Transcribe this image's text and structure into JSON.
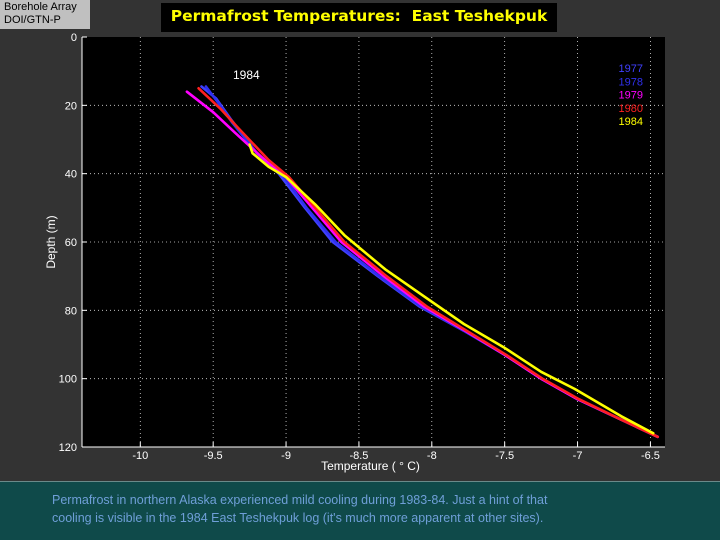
{
  "badge": {
    "line1": "Borehole Array",
    "line2": "DOI/GTN-P"
  },
  "colors": {
    "background": "#333333",
    "plot_bg": "#000000",
    "title": "#ffff00",
    "caption_bg": "#0f4a4a",
    "caption_text": "#6f9fd8"
  },
  "caption": {
    "line1": "Permafrost in northern Alaska experienced mild cooling during 1983-84.  Just a hint of that",
    "line2": "cooling is visible in the 1984 East Teshekpuk log (it's much more apparent at other sites)."
  },
  "chart_data": {
    "type": "line",
    "title": "Permafrost Temperatures:  East Teshekpuk",
    "xlabel": "Temperature (  ° C)",
    "ylabel": "Depth (m)",
    "xlim": [
      -10.4,
      -6.4
    ],
    "ylim": [
      0,
      120
    ],
    "y_inverted": true,
    "grid": true,
    "xticks": [
      -10,
      -9.5,
      -9,
      -8.5,
      -8,
      -7.5,
      -7,
      -6.5
    ],
    "xtick_labels": [
      "-10",
      "-9.5",
      "-9",
      "-8.5",
      "-8",
      "-7.5",
      "-7",
      "-6.5"
    ],
    "yticks": [
      0,
      20,
      40,
      60,
      80,
      100,
      120
    ],
    "ytick_labels": [
      "0",
      "20",
      "40",
      "60",
      "80",
      "100",
      "120"
    ],
    "legend_position": "top-right",
    "annotation": "1984",
    "series": [
      {
        "name": "1977",
        "color": "#4040ff",
        "points": [
          [
            -9.58,
            14.5
          ],
          [
            -9.48,
            18
          ],
          [
            -9.38,
            24
          ],
          [
            -9.2,
            34
          ],
          [
            -9.05,
            40
          ],
          [
            -8.87,
            50
          ],
          [
            -8.68,
            60
          ],
          [
            -8.37,
            70
          ],
          [
            -8.08,
            79
          ],
          [
            -7.78,
            86
          ],
          [
            -7.5,
            93
          ],
          [
            -7.25,
            100
          ],
          [
            -7.0,
            106
          ],
          [
            -6.7,
            112
          ],
          [
            -6.45,
            117
          ]
        ]
      },
      {
        "name": "1978",
        "color": "#3030ee",
        "points": [
          [
            -9.55,
            14.5
          ],
          [
            -9.47,
            19
          ],
          [
            -9.37,
            25
          ],
          [
            -9.2,
            34
          ],
          [
            -9.03,
            40
          ],
          [
            -8.86,
            50
          ],
          [
            -8.66,
            60
          ],
          [
            -8.36,
            70
          ],
          [
            -8.07,
            79
          ],
          [
            -7.78,
            86
          ],
          [
            -7.5,
            93
          ],
          [
            -7.25,
            100
          ],
          [
            -7.0,
            106
          ],
          [
            -6.7,
            112
          ],
          [
            -6.45,
            117
          ]
        ]
      },
      {
        "name": "1979",
        "color": "#ff00ff",
        "points": [
          [
            -9.68,
            16
          ],
          [
            -9.5,
            22
          ],
          [
            -9.35,
            28
          ],
          [
            -9.12,
            37
          ],
          [
            -9.0,
            41
          ],
          [
            -8.82,
            50
          ],
          [
            -8.62,
            60
          ],
          [
            -8.33,
            70
          ],
          [
            -8.05,
            79
          ],
          [
            -7.77,
            86
          ],
          [
            -7.5,
            93
          ],
          [
            -7.25,
            100
          ],
          [
            -7.0,
            106
          ],
          [
            -6.7,
            112
          ],
          [
            -6.45,
            117
          ]
        ]
      },
      {
        "name": "1980",
        "color": "#ff2020",
        "points": [
          [
            -9.6,
            15
          ],
          [
            -9.45,
            21
          ],
          [
            -9.32,
            27
          ],
          [
            -9.12,
            36
          ],
          [
            -8.98,
            41
          ],
          [
            -8.8,
            50
          ],
          [
            -8.6,
            60
          ],
          [
            -8.31,
            70
          ],
          [
            -8.03,
            79
          ],
          [
            -7.76,
            86
          ],
          [
            -7.49,
            93
          ],
          [
            -7.24,
            100
          ],
          [
            -6.99,
            106
          ],
          [
            -6.7,
            112
          ],
          [
            -6.45,
            117
          ]
        ]
      },
      {
        "name": "1984",
        "color": "#ffff00",
        "points": [
          [
            -9.25,
            31.5
          ],
          [
            -9.23,
            34
          ],
          [
            -9.12,
            38
          ],
          [
            -9.0,
            41
          ],
          [
            -8.8,
            49
          ],
          [
            -8.6,
            58
          ],
          [
            -8.32,
            68
          ],
          [
            -8.05,
            76
          ],
          [
            -7.78,
            84
          ],
          [
            -7.5,
            91
          ],
          [
            -7.25,
            98
          ],
          [
            -7.02,
            103
          ],
          [
            -6.7,
            111
          ],
          [
            -6.48,
            116
          ]
        ]
      }
    ]
  }
}
